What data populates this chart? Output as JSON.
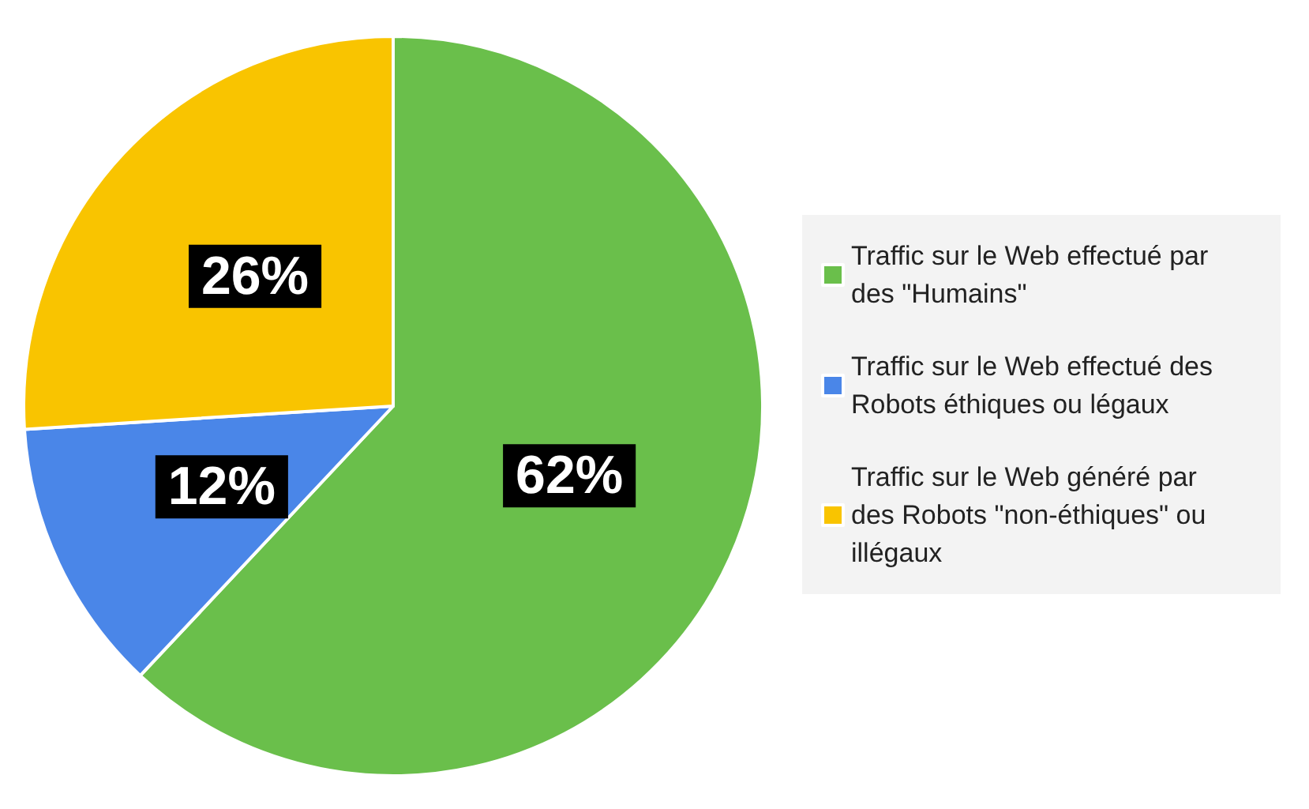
{
  "chart_data": {
    "type": "pie",
    "categories": [
      "Traffic sur le Web effectué par des \"Humains\"",
      "Traffic sur le Web effectué des Robots éthiques ou légaux",
      "Traffic sur le Web généré par des Robots \"non-éthiques\" ou illégaux"
    ],
    "values": [
      62,
      12,
      26
    ],
    "colors": [
      "#6abf4b",
      "#4a86e8",
      "#f9c400"
    ],
    "value_labels": [
      "62%",
      "12%",
      "26%"
    ],
    "legend": "right"
  }
}
